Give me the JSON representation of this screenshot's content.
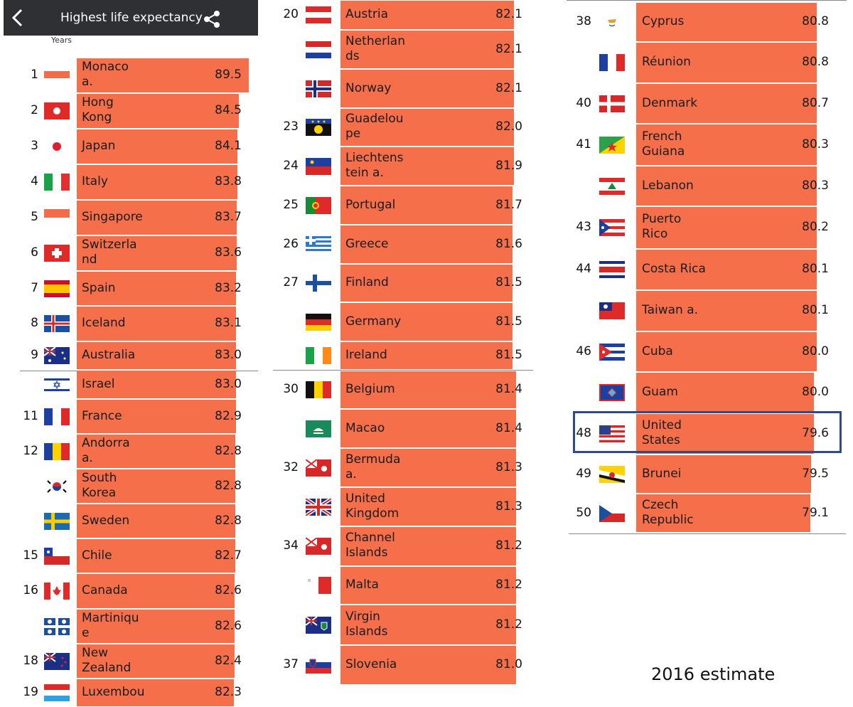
{
  "header": {
    "title": "Highest life expectancy",
    "years_label": "Years"
  },
  "note": "2016 estimate",
  "columns": [
    {
      "rows": [
        {
          "rank": "1",
          "name": [
            "Monaco",
            "a."
          ],
          "value": "89.5",
          "flag": "monaco"
        },
        {
          "rank": "2",
          "name": [
            "Hong",
            "Kong"
          ],
          "value": "84.5",
          "flag": "hongkong"
        },
        {
          "rank": "3",
          "name": [
            "Japan"
          ],
          "value": "84.1",
          "flag": "japan"
        },
        {
          "rank": "4",
          "name": [
            "Italy"
          ],
          "value": "83.8",
          "flag": "italy"
        },
        {
          "rank": "5",
          "name": [
            "Singapore"
          ],
          "value": "83.7",
          "flag": "singapore"
        },
        {
          "rank": "6",
          "name": [
            "Switzerla",
            "nd"
          ],
          "value": "83.6",
          "flag": "switzerland"
        },
        {
          "rank": "7",
          "name": [
            "Spain"
          ],
          "value": "83.2",
          "flag": "spain"
        },
        {
          "rank": "8",
          "name": [
            "Iceland"
          ],
          "value": "83.1",
          "flag": "iceland"
        },
        {
          "rank": "9",
          "name": [
            "Australia"
          ],
          "value": "83.0",
          "flag": "australia"
        },
        {
          "rank": "",
          "name": [
            "Israel"
          ],
          "value": "83.0",
          "flag": "israel"
        },
        {
          "rank": "11",
          "name": [
            "France"
          ],
          "value": "82.9",
          "flag": "france"
        },
        {
          "rank": "12",
          "name": [
            "Andorra",
            "a."
          ],
          "value": "82.8",
          "flag": "andorra"
        },
        {
          "rank": "",
          "name": [
            "South",
            "Korea"
          ],
          "value": "82.8",
          "flag": "korea"
        },
        {
          "rank": "",
          "name": [
            "Sweden"
          ],
          "value": "82.8",
          "flag": "sweden"
        },
        {
          "rank": "15",
          "name": [
            "Chile"
          ],
          "value": "82.7",
          "flag": "chile"
        },
        {
          "rank": "16",
          "name": [
            "Canada"
          ],
          "value": "82.6",
          "flag": "canada"
        },
        {
          "rank": "",
          "name": [
            "Martiniqu",
            "e"
          ],
          "value": "82.6",
          "flag": "martinique"
        },
        {
          "rank": "18",
          "name": [
            "New",
            "Zealand"
          ],
          "value": "82.4",
          "flag": "newzealand"
        },
        {
          "rank": "19",
          "name": [
            "Luxembou"
          ],
          "value": "82.3",
          "flag": "luxembourg"
        }
      ]
    },
    {
      "rows": [
        {
          "rank": "20",
          "name": [
            "Austria"
          ],
          "value": "82.1",
          "flag": "austria"
        },
        {
          "rank": "",
          "name": [
            "Netherlan",
            "ds"
          ],
          "value": "82.1",
          "flag": "netherlands"
        },
        {
          "rank": "",
          "name": [
            "Norway"
          ],
          "value": "82.1",
          "flag": "norway"
        },
        {
          "rank": "23",
          "name": [
            "Guadelou",
            "pe"
          ],
          "value": "82.0",
          "flag": "guadeloupe"
        },
        {
          "rank": "24",
          "name": [
            "Liechtens",
            "tein a."
          ],
          "value": "81.9",
          "flag": "liechtenstein"
        },
        {
          "rank": "25",
          "name": [
            "Portugal"
          ],
          "value": "81.7",
          "flag": "portugal"
        },
        {
          "rank": "26",
          "name": [
            "Greece"
          ],
          "value": "81.6",
          "flag": "greece"
        },
        {
          "rank": "27",
          "name": [
            "Finland"
          ],
          "value": "81.5",
          "flag": "finland"
        },
        {
          "rank": "",
          "name": [
            "Germany"
          ],
          "value": "81.5",
          "flag": "germany"
        },
        {
          "rank": "",
          "name": [
            "Ireland"
          ],
          "value": "81.5",
          "flag": "ireland"
        },
        {
          "rank": "30",
          "name": [
            "Belgium"
          ],
          "value": "81.4",
          "flag": "belgium"
        },
        {
          "rank": "",
          "name": [
            "Macao"
          ],
          "value": "81.4",
          "flag": "macao"
        },
        {
          "rank": "32",
          "name": [
            "Bermuda",
            "a."
          ],
          "value": "81.3",
          "flag": "bermuda"
        },
        {
          "rank": "",
          "name": [
            "United",
            "Kingdom"
          ],
          "value": "81.3",
          "flag": "uk"
        },
        {
          "rank": "34",
          "name": [
            "Channel",
            "Islands"
          ],
          "value": "81.2",
          "flag": "channel"
        },
        {
          "rank": "",
          "name": [
            "Malta"
          ],
          "value": "81.2",
          "flag": "malta"
        },
        {
          "rank": "",
          "name": [
            "Virgin",
            "Islands"
          ],
          "value": "81.2",
          "flag": "virgin"
        },
        {
          "rank": "37",
          "name": [
            "Slovenia"
          ],
          "value": "81.0",
          "flag": "slovenia"
        }
      ]
    },
    {
      "rows": [
        {
          "rank": "38",
          "name": [
            "Cyprus"
          ],
          "value": "80.8",
          "flag": "cyprus"
        },
        {
          "rank": "",
          "name": [
            "Réunion"
          ],
          "value": "80.8",
          "flag": "reunion"
        },
        {
          "rank": "40",
          "name": [
            "Denmark"
          ],
          "value": "80.7",
          "flag": "denmark"
        },
        {
          "rank": "41",
          "name": [
            "French",
            "Guiana"
          ],
          "value": "80.3",
          "flag": "guiana"
        },
        {
          "rank": "",
          "name": [
            "Lebanon"
          ],
          "value": "80.3",
          "flag": "lebanon"
        },
        {
          "rank": "43",
          "name": [
            "Puerto",
            "Rico"
          ],
          "value": "80.2",
          "flag": "puertorico"
        },
        {
          "rank": "44",
          "name": [
            "Costa Rica"
          ],
          "value": "80.1",
          "flag": "costarica"
        },
        {
          "rank": "",
          "name": [
            "Taiwan a."
          ],
          "value": "80.1",
          "flag": "taiwan"
        },
        {
          "rank": "46",
          "name": [
            "Cuba"
          ],
          "value": "80.0",
          "flag": "cuba"
        },
        {
          "rank": "",
          "name": [
            "Guam"
          ],
          "value": "80.0",
          "flag": "guam"
        },
        {
          "rank": "48",
          "name": [
            "United",
            "States"
          ],
          "value": "79.6",
          "flag": "usa"
        },
        {
          "rank": "49",
          "name": [
            "Brunei"
          ],
          "value": "79.5",
          "flag": "brunei"
        },
        {
          "rank": "50",
          "name": [
            "Czech",
            "Republic"
          ],
          "value": "79.1",
          "flag": "czech"
        }
      ]
    }
  ],
  "colors": {
    "bar": "#f5704a",
    "topbar": "#2f3033",
    "highlight": "#2f4a8a"
  }
}
